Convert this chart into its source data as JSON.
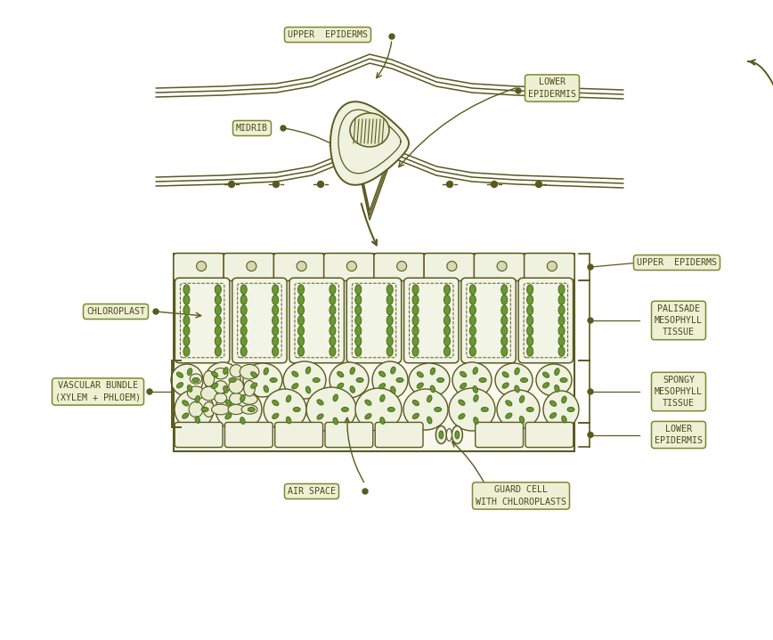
{
  "bg_color": "#ffffff",
  "line_color": "#5a5a20",
  "fill_light": "#f5f5e5",
  "fill_cream": "#eeeedd",
  "chloroplast_fill": "#6a9930",
  "chloroplast_edge": "#4a6a20",
  "label_bg": "#eef0d5",
  "label_border": "#7a8a30",
  "text_color": "#4a4a15",
  "labels": {
    "upper_epiderms_top": "UPPER  EPIDERMS",
    "lower_epidermis_top": "LOWER\nEPIDERMIS",
    "midrib": "MIDRIB",
    "upper_epiderms_bottom": "UPPER  EPIDERMS",
    "chloroplast": "CHLOROPLAST",
    "vascular_bundle": "VASCULAR BUNDLE\n(XYLEM + PHLOEM)",
    "palisade": "PALISADE\nMESOPHYLL\nTISSUE",
    "spongy": "SPONGY\nMESOPHYLL\nTISSUE",
    "lower_epidermis_bottom": "LOWER\nEPIDERMIS",
    "air_space": "AIR SPACE",
    "guard_cell": "GUARD CELL\nWITH CHLOROPLASTS"
  }
}
